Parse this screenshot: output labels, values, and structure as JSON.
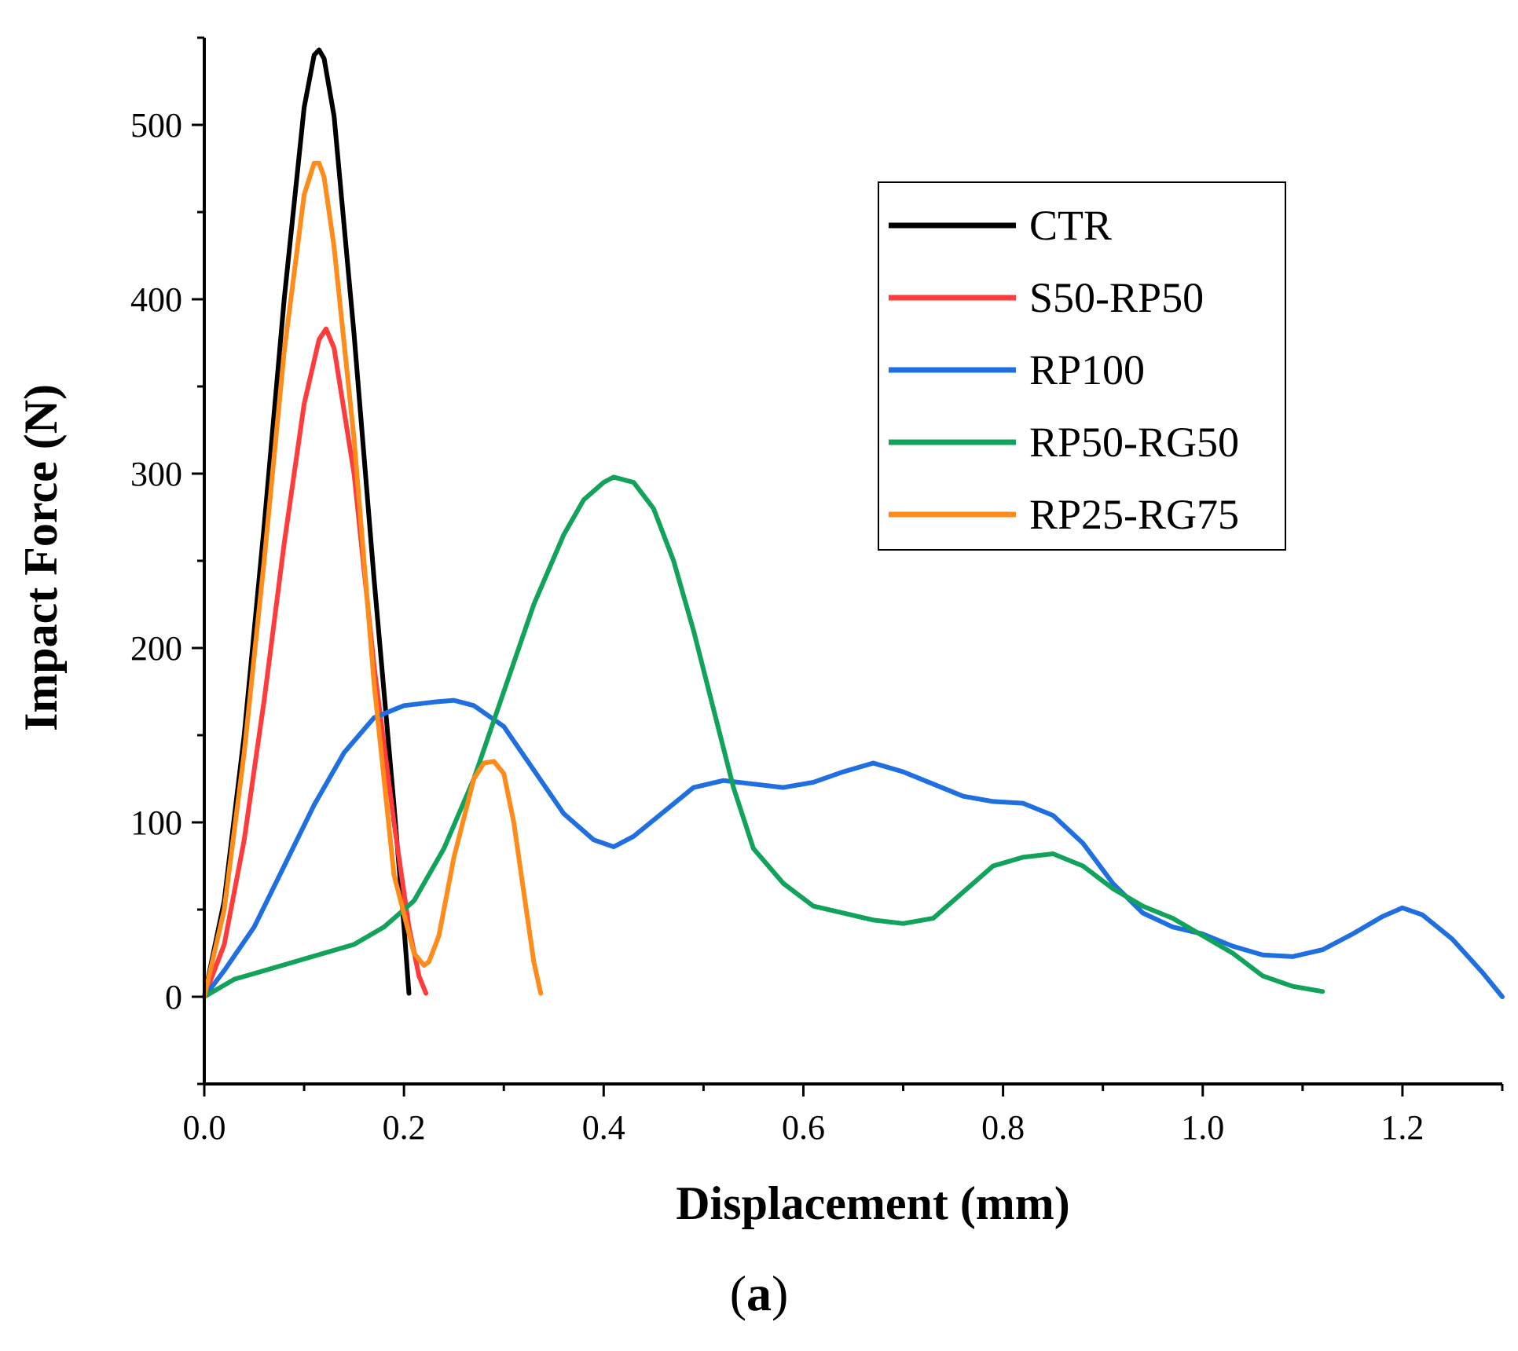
{
  "chart_data": {
    "type": "line",
    "title": "",
    "xlabel": "Displacement (mm)",
    "ylabel": "Impact Force (N)",
    "xlim": [
      0.0,
      1.3
    ],
    "ylim": [
      -50,
      550
    ],
    "xticks": [
      0.0,
      0.2,
      0.4,
      0.6,
      0.8,
      1.0,
      1.2
    ],
    "xtick_labels": [
      "0.0",
      "0.2",
      "0.4",
      "0.6",
      "0.8",
      "1.0",
      "1.2"
    ],
    "yticks": [
      0,
      100,
      200,
      300,
      400,
      500
    ],
    "ytick_labels": [
      "0",
      "100",
      "200",
      "300",
      "400",
      "500"
    ],
    "grid": false,
    "legend_position": "top-right",
    "series": [
      {
        "name": "CTR",
        "color": "#000000",
        "x": [
          0.0,
          0.02,
          0.04,
          0.06,
          0.08,
          0.1,
          0.11,
          0.115,
          0.12,
          0.13,
          0.15,
          0.17,
          0.19,
          0.2,
          0.205
        ],
        "y": [
          0,
          55,
          150,
          270,
          400,
          510,
          540,
          543,
          538,
          505,
          380,
          240,
          110,
          40,
          2
        ]
      },
      {
        "name": "S50-RP50",
        "color": "#ff3b3b",
        "x": [
          0.0,
          0.02,
          0.04,
          0.06,
          0.08,
          0.1,
          0.115,
          0.122,
          0.13,
          0.15,
          0.17,
          0.19,
          0.205,
          0.215,
          0.222
        ],
        "y": [
          0,
          30,
          90,
          170,
          260,
          340,
          377,
          383,
          372,
          300,
          190,
          100,
          40,
          12,
          2
        ]
      },
      {
        "name": "RP100",
        "color": "#1f6fe0",
        "x": [
          0.0,
          0.02,
          0.05,
          0.08,
          0.11,
          0.14,
          0.17,
          0.2,
          0.23,
          0.25,
          0.27,
          0.3,
          0.33,
          0.36,
          0.39,
          0.41,
          0.43,
          0.46,
          0.49,
          0.52,
          0.55,
          0.58,
          0.61,
          0.64,
          0.67,
          0.7,
          0.73,
          0.76,
          0.79,
          0.82,
          0.85,
          0.88,
          0.91,
          0.94,
          0.97,
          1.0,
          1.03,
          1.06,
          1.09,
          1.12,
          1.15,
          1.18,
          1.2,
          1.22,
          1.25,
          1.28,
          1.3
        ],
        "y": [
          0,
          15,
          40,
          75,
          110,
          140,
          160,
          167,
          169,
          170,
          167,
          155,
          130,
          105,
          90,
          86,
          92,
          106,
          120,
          124,
          122,
          120,
          123,
          129,
          134,
          129,
          122,
          115,
          112,
          111,
          104,
          88,
          65,
          48,
          40,
          36,
          29,
          24,
          23,
          27,
          36,
          46,
          51,
          47,
          33,
          14,
          0
        ]
      },
      {
        "name": "RP50-RG50",
        "color": "#12a35a",
        "x": [
          0.0,
          0.03,
          0.06,
          0.09,
          0.12,
          0.15,
          0.18,
          0.21,
          0.24,
          0.27,
          0.3,
          0.33,
          0.36,
          0.38,
          0.4,
          0.41,
          0.43,
          0.45,
          0.47,
          0.49,
          0.51,
          0.53,
          0.55,
          0.58,
          0.61,
          0.64,
          0.67,
          0.7,
          0.73,
          0.76,
          0.79,
          0.82,
          0.85,
          0.88,
          0.91,
          0.94,
          0.97,
          1.0,
          1.03,
          1.06,
          1.09,
          1.12
        ],
        "y": [
          0,
          10,
          15,
          20,
          25,
          30,
          40,
          55,
          85,
          125,
          175,
          225,
          265,
          285,
          295,
          298,
          295,
          280,
          250,
          210,
          165,
          120,
          85,
          65,
          52,
          48,
          44,
          42,
          45,
          60,
          75,
          80,
          82,
          75,
          62,
          52,
          45,
          35,
          25,
          12,
          6,
          3
        ]
      },
      {
        "name": "RP25-RG75",
        "color": "#ff8c1a",
        "x": [
          0.0,
          0.02,
          0.04,
          0.06,
          0.08,
          0.1,
          0.11,
          0.115,
          0.12,
          0.13,
          0.15,
          0.17,
          0.19,
          0.21,
          0.22,
          0.225,
          0.235,
          0.25,
          0.27,
          0.28,
          0.29,
          0.3,
          0.31,
          0.32,
          0.33,
          0.337
        ],
        "y": [
          0,
          50,
          140,
          250,
          370,
          460,
          478,
          478,
          470,
          430,
          320,
          180,
          70,
          25,
          18,
          20,
          35,
          80,
          125,
          134,
          135,
          128,
          100,
          60,
          20,
          2
        ]
      }
    ]
  },
  "panel_label": {
    "open": "(",
    "letter": "a",
    "close": ")"
  }
}
